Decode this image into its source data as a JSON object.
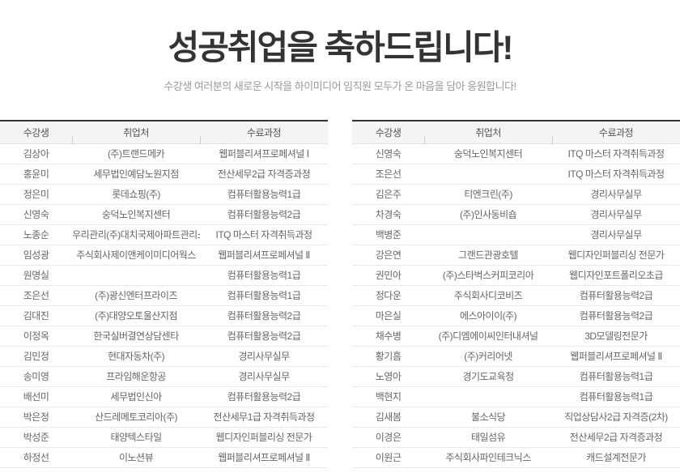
{
  "header": {
    "title": "성공취업을 축하드립니다!",
    "subtitle": "수강생 여러분의 새로운 시작을 하이미디어 임직원 모두가 온 마음을 담아 응원합니다!"
  },
  "colors": {
    "title_text": "#333333",
    "subtitle_text": "#999999",
    "table_top_border": "#333333",
    "header_row_bg": "#f4f4f4",
    "header_row_text": "#555555",
    "row_divider": "#e9e9e9",
    "cell_text": "#666666"
  },
  "tables": [
    {
      "columns": [
        "수강생",
        "취업처",
        "수료과정"
      ],
      "rows": [
        [
          "김상아",
          "(주)트랜드메카",
          "웹퍼블리셔프로페셔널 Ⅰ"
        ],
        [
          "홍윤미",
          "세무법인예담노원지점",
          "전산세무2급 자격증과정"
        ],
        [
          "정은미",
          "롯데쇼핑(주)",
          "컴퓨터활용능력1급"
        ],
        [
          "신영숙",
          "숭덕노인복지센터",
          "컴퓨터활용능력2급"
        ],
        [
          "노종순",
          "우리관리(주)대치국제아파트관리소",
          "ITQ 마스터 자격취득과정"
        ],
        [
          "임성광",
          "주식회사제이앤케이미디어웍스",
          "웹퍼블리셔프로페셔널 Ⅱ"
        ],
        [
          "원명실",
          "",
          "컴퓨터활용능력1급"
        ],
        [
          "조은선",
          "(주)광신엔터프라이즈",
          "컴퓨터활용능력1급"
        ],
        [
          "김대진",
          "(주)대양오토울산지점",
          "컴퓨터활용능력2급"
        ],
        [
          "이정옥",
          "한국실버결연상담센타",
          "컴퓨터활용능력2급"
        ],
        [
          "김민정",
          "현대자동차(주)",
          "경리사무실무"
        ],
        [
          "송미영",
          "프라임해운항공",
          "경리사무실무"
        ],
        [
          "배선미",
          "세무법인신아",
          "컴퓨터활용능력2급"
        ],
        [
          "박은정",
          "산드레메토코리아(주)",
          "전산세무1급 자격취득과정"
        ],
        [
          "박성준",
          "태양텍스타일",
          "웹디자인퍼블리싱 전문가"
        ],
        [
          "하정선",
          "이노션뷰",
          "웹퍼블리셔프로페셔널 Ⅱ"
        ]
      ]
    },
    {
      "columns": [
        "수강생",
        "취업처",
        "수료과정"
      ],
      "rows": [
        [
          "신영숙",
          "숭덕노인복지센터",
          "ITQ 마스터 자격취득과정"
        ],
        [
          "조은선",
          "",
          "ITQ 마스터 자격취득과정"
        ],
        [
          "김은주",
          "티엔크린(주)",
          "경리사무실무"
        ],
        [
          "차경숙",
          "(주)인사동비숍",
          "경리사무실무"
        ],
        [
          "백병준",
          "",
          "경리사무실무"
        ],
        [
          "강은연",
          "그랜드관광호텔",
          "웹디자인퍼블리싱 전문가"
        ],
        [
          "권민아",
          "(주)스타벅스커피코리아",
          "웹디자인포트폴리오초급"
        ],
        [
          "정다운",
          "주식회사디코비즈",
          "컴퓨터활용능력2급"
        ],
        [
          "마은실",
          "에스아이이(주)",
          "컴퓨터활용능력2급"
        ],
        [
          "채수병",
          "(주)디엠에이씨인터내셔널",
          "3D모델링전문가"
        ],
        [
          "황기흠",
          "(주)커리어넷",
          "웹퍼블리셔프로페셔널 Ⅱ"
        ],
        [
          "노영아",
          "경기도교육청",
          "컴퓨터활용능력1급"
        ],
        [
          "백현지",
          "",
          "컴퓨터활용능력1급"
        ],
        [
          "김새봄",
          "불소식당",
          "직업상담사2급 자격증(2차)"
        ],
        [
          "이경은",
          "태일섬유",
          "전산세무2급 자격증과정"
        ],
        [
          "이원근",
          "주식회사파인테크닉스",
          "캐드설계전문가"
        ]
      ]
    }
  ]
}
